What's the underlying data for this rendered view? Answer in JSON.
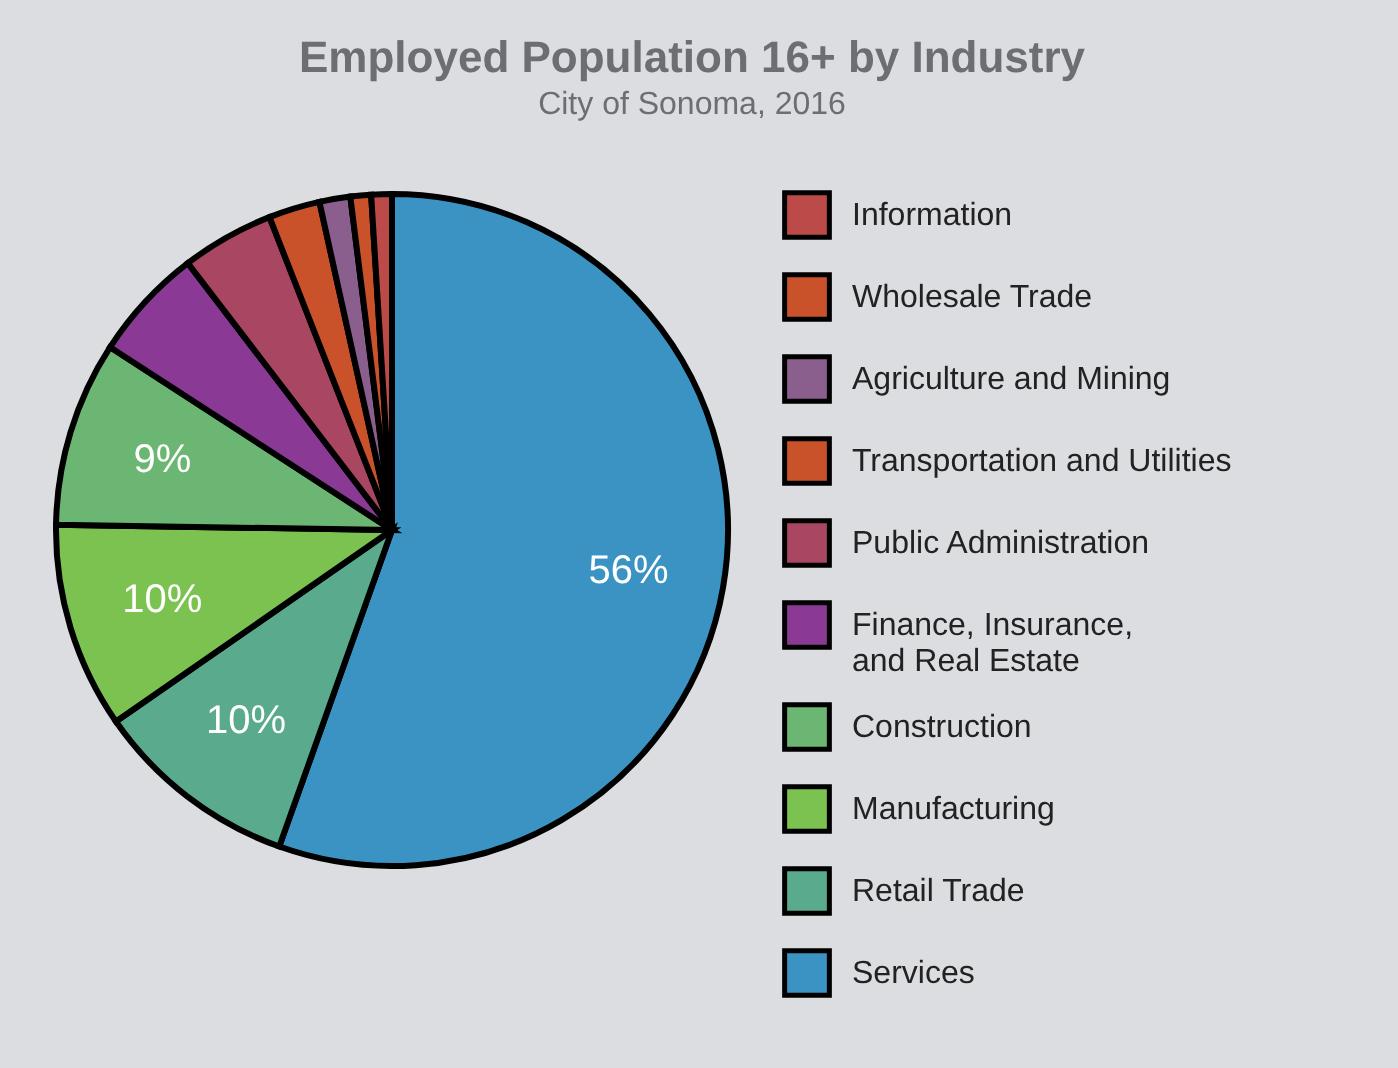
{
  "chart_data": {
    "type": "pie",
    "title": "Employed Population 16+ by Industry",
    "subtitle": "City of Sonoma, 2016",
    "categories": [
      "Services",
      "Retail Trade",
      "Manufacturing",
      "Construction",
      "Finance, Insurance, and Real Estate",
      "Public Administration",
      "Transportation and Utilities",
      "Agriculture and Mining",
      "Wholesale Trade",
      "Information"
    ],
    "values": [
      56,
      10,
      10,
      9,
      5.5,
      4.5,
      2.5,
      1.5,
      1,
      1
    ],
    "colors": [
      "#3a93c3",
      "#5aab8e",
      "#7cc250",
      "#6cb673",
      "#8a3a94",
      "#a94762",
      "#c9522a",
      "#8a5f8e",
      "#c9522a",
      "#bb4a48"
    ],
    "value_labels": [
      "56%",
      "10%",
      "10%",
      "9%",
      null,
      null,
      null,
      null,
      null,
      null
    ],
    "legend": "right"
  }
}
